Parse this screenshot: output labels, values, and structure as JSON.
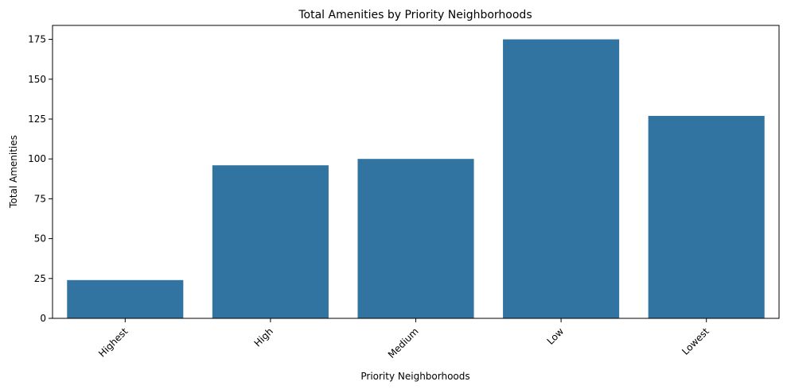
{
  "chart_data": {
    "type": "bar",
    "title": "Total Amenities by Priority Neighborhoods",
    "xlabel": "Priority Neighborhoods",
    "ylabel": "Total Amenities",
    "categories": [
      "Highest",
      "High",
      "Medium",
      "Low",
      "Lowest"
    ],
    "values": [
      24,
      96,
      100,
      175,
      127
    ],
    "ylim": [
      0,
      183.75
    ],
    "yticks": [
      0,
      25,
      50,
      75,
      100,
      125,
      150,
      175
    ],
    "grid": false,
    "bar_color": "#3274a1"
  }
}
